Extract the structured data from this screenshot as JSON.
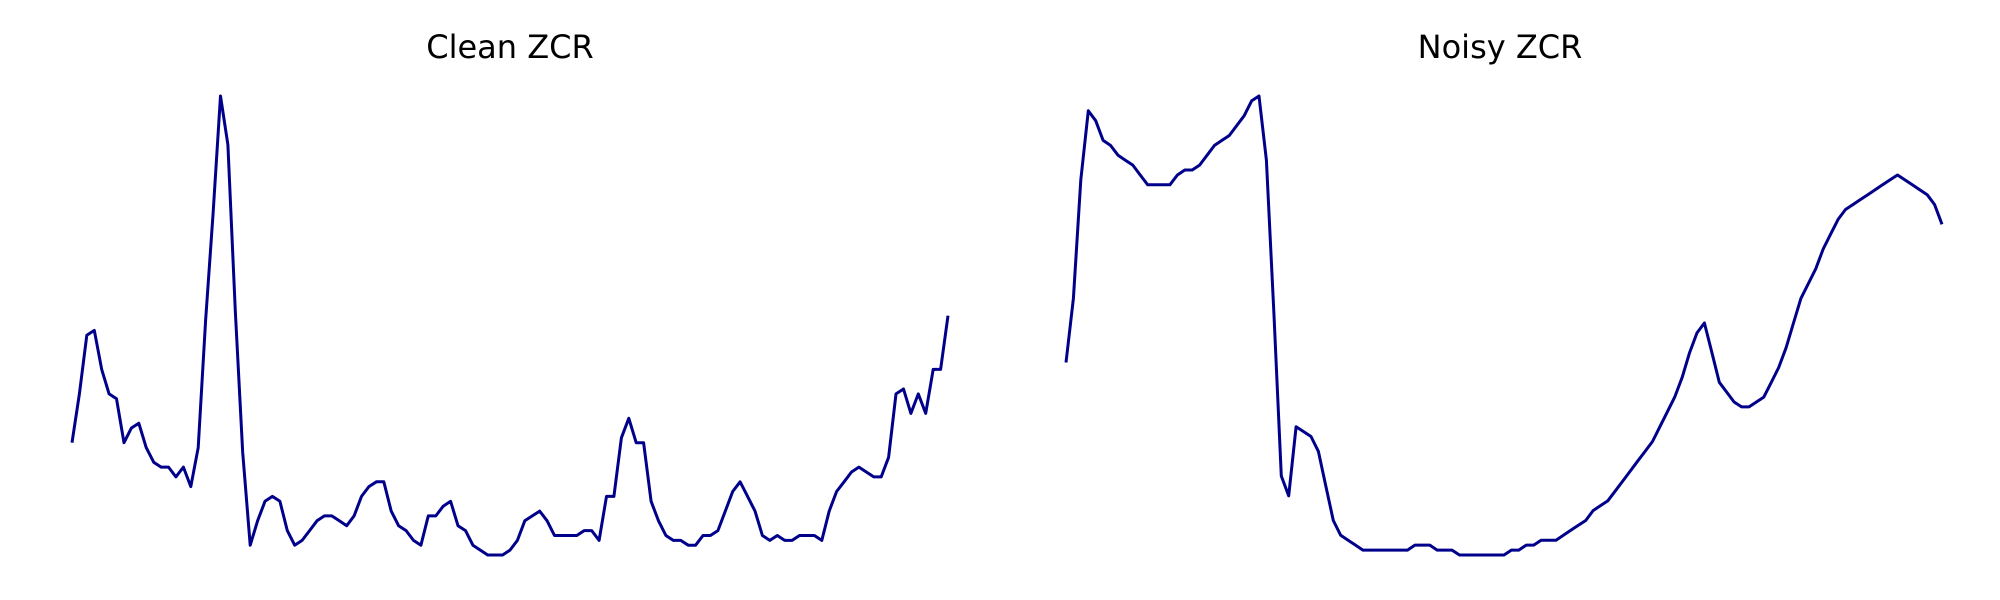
{
  "line_color": "#00008b",
  "background": "#ffffff",
  "chart_data": [
    {
      "type": "line",
      "title": "Clean ZCR",
      "xlabel": "",
      "ylabel": "",
      "axes_visible": false,
      "grid": false,
      "x": [
        0,
        1,
        2,
        3,
        4,
        5,
        6,
        7,
        8,
        9,
        10,
        11,
        12,
        13,
        14,
        15,
        16,
        17,
        18,
        19,
        20,
        21,
        22,
        23,
        24,
        25,
        26,
        27,
        28,
        29,
        30,
        31,
        32,
        33,
        34,
        35,
        36,
        37,
        38,
        39,
        40,
        41,
        42,
        43,
        44,
        45,
        46,
        47,
        48,
        49,
        50,
        51,
        52,
        53,
        54,
        55,
        56,
        57,
        58,
        59,
        60,
        61,
        62,
        63,
        64,
        65,
        66,
        67,
        68,
        69,
        70,
        71,
        72,
        73,
        74,
        75,
        76,
        77,
        78,
        79,
        80,
        81,
        82,
        83,
        84,
        85,
        86,
        87,
        88,
        89,
        90,
        91,
        92,
        93,
        94,
        95,
        96,
        97,
        98,
        99,
        100,
        101,
        102,
        103,
        104,
        105,
        106,
        107,
        108,
        109,
        110,
        111,
        112,
        113,
        114,
        115,
        116,
        117,
        118
      ],
      "series": [
        {
          "values": [
            0.27,
            0.37,
            0.49,
            0.5,
            0.42,
            0.37,
            0.36,
            0.27,
            0.3,
            0.31,
            0.26,
            0.23,
            0.22,
            0.22,
            0.2,
            0.22,
            0.18,
            0.26,
            0.52,
            0.74,
            0.98,
            0.88,
            0.54,
            0.25,
            0.06,
            0.11,
            0.15,
            0.16,
            0.15,
            0.09,
            0.06,
            0.07,
            0.09,
            0.11,
            0.12,
            0.12,
            0.11,
            0.1,
            0.12,
            0.16,
            0.18,
            0.19,
            0.19,
            0.13,
            0.1,
            0.09,
            0.07,
            0.06,
            0.12,
            0.12,
            0.14,
            0.15,
            0.1,
            0.09,
            0.06,
            0.05,
            0.04,
            0.04,
            0.04,
            0.05,
            0.07,
            0.11,
            0.12,
            0.13,
            0.11,
            0.08,
            0.08,
            0.08,
            0.08,
            0.09,
            0.09,
            0.07,
            0.16,
            0.16,
            0.28,
            0.32,
            0.27,
            0.27,
            0.15,
            0.11,
            0.08,
            0.07,
            0.07,
            0.06,
            0.06,
            0.08,
            0.08,
            0.09,
            0.13,
            0.17,
            0.19,
            0.16,
            0.13,
            0.08,
            0.07,
            0.08,
            0.07,
            0.07,
            0.08,
            0.08,
            0.08,
            0.07,
            0.13,
            0.17,
            0.19,
            0.21,
            0.22,
            0.21,
            0.2,
            0.2,
            0.24,
            0.37,
            0.38,
            0.33,
            0.37,
            0.33,
            0.42,
            0.42,
            0.53
          ]
        }
      ]
    },
    {
      "type": "line",
      "title": "Noisy ZCR",
      "xlabel": "",
      "ylabel": "",
      "axes_visible": false,
      "grid": false,
      "x": [
        0,
        1,
        2,
        3,
        4,
        5,
        6,
        7,
        8,
        9,
        10,
        11,
        12,
        13,
        14,
        15,
        16,
        17,
        18,
        19,
        20,
        21,
        22,
        23,
        24,
        25,
        26,
        27,
        28,
        29,
        30,
        31,
        32,
        33,
        34,
        35,
        36,
        37,
        38,
        39,
        40,
        41,
        42,
        43,
        44,
        45,
        46,
        47,
        48,
        49,
        50,
        51,
        52,
        53,
        54,
        55,
        56,
        57,
        58,
        59,
        60,
        61,
        62,
        63,
        64,
        65,
        66,
        67,
        68,
        69,
        70,
        71,
        72,
        73,
        74,
        75,
        76,
        77,
        78,
        79,
        80,
        81,
        82,
        83,
        84,
        85,
        86,
        87,
        88,
        89,
        90,
        91,
        92,
        93,
        94,
        95,
        96,
        97,
        98,
        99,
        100,
        101,
        102,
        103,
        104,
        105,
        106,
        107,
        108,
        109,
        110,
        111,
        112,
        113,
        114,
        115,
        116,
        117,
        118
      ],
      "series": [
        {
          "values": [
            0.44,
            0.57,
            0.81,
            0.95,
            0.93,
            0.89,
            0.88,
            0.86,
            0.85,
            0.84,
            0.82,
            0.8,
            0.8,
            0.8,
            0.8,
            0.82,
            0.83,
            0.83,
            0.84,
            0.86,
            0.88,
            0.89,
            0.9,
            0.92,
            0.94,
            0.97,
            0.98,
            0.85,
            0.54,
            0.21,
            0.17,
            0.31,
            0.3,
            0.29,
            0.26,
            0.19,
            0.12,
            0.09,
            0.08,
            0.07,
            0.06,
            0.06,
            0.06,
            0.06,
            0.06,
            0.06,
            0.06,
            0.07,
            0.07,
            0.07,
            0.06,
            0.06,
            0.06,
            0.05,
            0.05,
            0.05,
            0.05,
            0.05,
            0.05,
            0.05,
            0.06,
            0.06,
            0.07,
            0.07,
            0.08,
            0.08,
            0.08,
            0.09,
            0.1,
            0.11,
            0.12,
            0.14,
            0.15,
            0.16,
            0.18,
            0.2,
            0.22,
            0.24,
            0.26,
            0.28,
            0.31,
            0.34,
            0.37,
            0.41,
            0.46,
            0.5,
            0.52,
            0.46,
            0.4,
            0.38,
            0.36,
            0.35,
            0.35,
            0.36,
            0.37,
            0.4,
            0.43,
            0.47,
            0.52,
            0.57,
            0.6,
            0.63,
            0.67,
            0.7,
            0.73,
            0.75,
            0.76,
            0.77,
            0.78,
            0.79,
            0.8,
            0.81,
            0.82,
            0.81,
            0.8,
            0.79,
            0.78,
            0.76,
            0.72
          ]
        }
      ]
    }
  ]
}
